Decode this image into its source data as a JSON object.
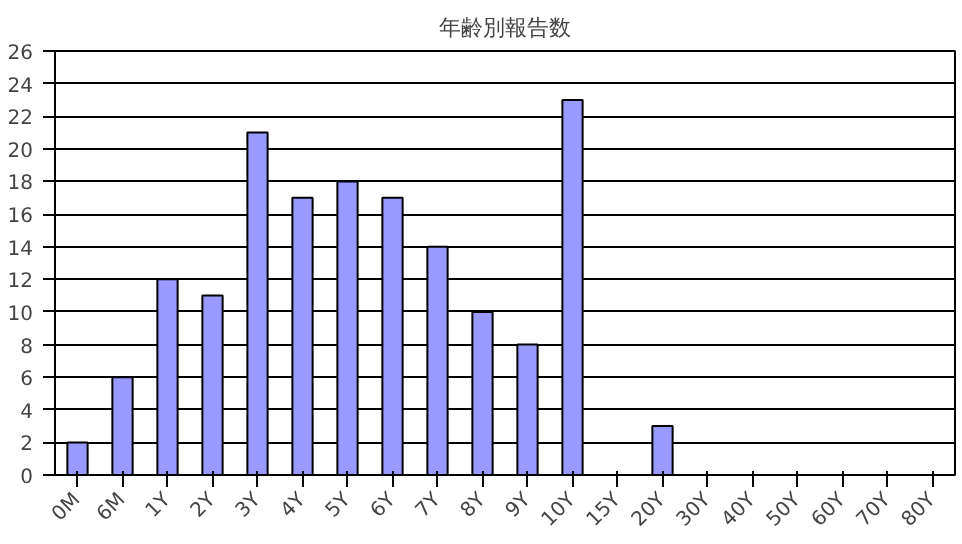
{
  "chart_data": {
    "type": "bar",
    "title": "年齢別報告数",
    "categories": [
      "0M",
      "6M",
      "1Y",
      "2Y",
      "3Y",
      "4Y",
      "5Y",
      "6Y",
      "7Y",
      "8Y",
      "9Y",
      "10Y",
      "15Y",
      "20Y",
      "30Y",
      "40Y",
      "50Y",
      "60Y",
      "70Y",
      "80Y"
    ],
    "values": [
      2,
      6,
      12,
      11,
      21,
      17,
      18,
      17,
      14,
      10,
      8,
      23,
      null,
      3,
      null,
      null,
      null,
      null,
      null,
      null
    ],
    "color": "#9999ff",
    "ylim": [
      0,
      26
    ],
    "yticks": [
      0,
      2,
      4,
      6,
      8,
      10,
      12,
      14,
      16,
      18,
      20,
      22,
      24,
      26
    ],
    "grid": "y"
  }
}
